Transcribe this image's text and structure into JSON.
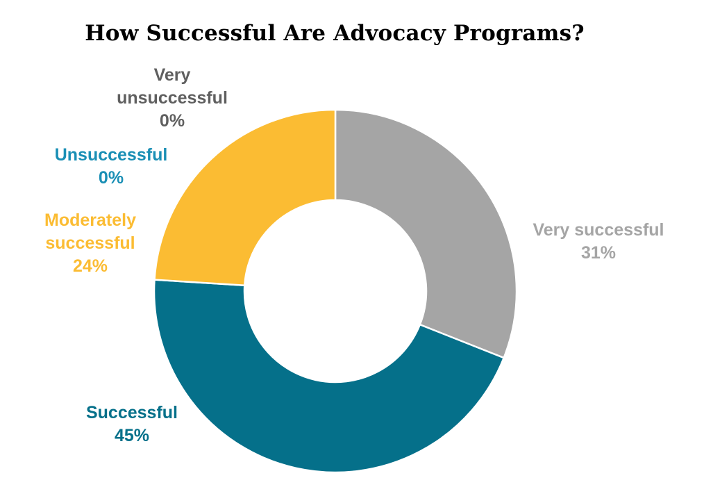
{
  "chart_data": {
    "type": "pie",
    "title": "How Successful Are Advocacy Programs?",
    "donut": true,
    "slices": [
      {
        "label": "Very successful",
        "value": 31,
        "value_label": "31%",
        "color": "#A5A5A5"
      },
      {
        "label": "Successful",
        "value": 45,
        "value_label": "45%",
        "color": "#05708A"
      },
      {
        "label": "Moderately successful",
        "value": 24,
        "value_label": "24%",
        "color": "#FBBC33"
      },
      {
        "label": "Unsuccessful",
        "value": 0,
        "value_label": "0%",
        "color": "#1A8FB5"
      },
      {
        "label": "Very unsuccessful",
        "value": 0,
        "value_label": "0%",
        "color": "#5F5F5F"
      }
    ]
  },
  "labels": {
    "very_successful_name": "Very successful",
    "successful_name": "Successful",
    "moderately_line1": "Moderately",
    "moderately_line2": "successful",
    "unsuccessful_name": "Unsuccessful",
    "very_unsuccessful_line1": "Very",
    "very_unsuccessful_line2": "unsuccessful"
  }
}
